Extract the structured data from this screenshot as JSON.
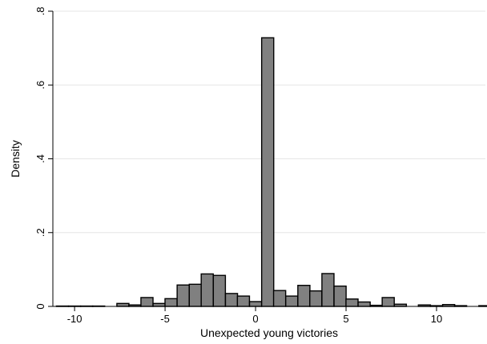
{
  "chart_data": {
    "type": "bar",
    "subtype": "histogram",
    "xlabel": "Unexpected young victories",
    "ylabel": "Density",
    "xlim": [
      -11.2,
      12.7
    ],
    "ylim": [
      0,
      0.8
    ],
    "x_ticks": [
      {
        "value": -10,
        "label": "-10"
      },
      {
        "value": -5,
        "label": "-5"
      },
      {
        "value": 0,
        "label": "0"
      },
      {
        "value": 5,
        "label": "5"
      },
      {
        "value": 10,
        "label": "10"
      }
    ],
    "y_ticks": [
      {
        "value": 0,
        "label": "0"
      },
      {
        "value": 0.2,
        "label": ".2"
      },
      {
        "value": 0.4,
        "label": ".4"
      },
      {
        "value": 0.6,
        "label": ".6"
      },
      {
        "value": 0.8,
        "label": ".8"
      }
    ],
    "grid": true,
    "bin_width": 0.667,
    "bars": [
      {
        "x": -10.67,
        "y": 0.001
      },
      {
        "x": -10.0,
        "y": 0.001
      },
      {
        "x": -9.33,
        "y": 0.001
      },
      {
        "x": -8.67,
        "y": 0.001
      },
      {
        "x": -7.33,
        "y": 0.008
      },
      {
        "x": -6.67,
        "y": 0.004
      },
      {
        "x": -6.0,
        "y": 0.024
      },
      {
        "x": -5.33,
        "y": 0.008
      },
      {
        "x": -4.67,
        "y": 0.021
      },
      {
        "x": -4.0,
        "y": 0.058
      },
      {
        "x": -3.33,
        "y": 0.06
      },
      {
        "x": -2.67,
        "y": 0.088
      },
      {
        "x": -2.0,
        "y": 0.084
      },
      {
        "x": -1.33,
        "y": 0.035
      },
      {
        "x": -0.67,
        "y": 0.028
      },
      {
        "x": 0.0,
        "y": 0.013
      },
      {
        "x": 0.67,
        "y": 0.728
      },
      {
        "x": 1.33,
        "y": 0.043
      },
      {
        "x": 2.0,
        "y": 0.028
      },
      {
        "x": 2.67,
        "y": 0.057
      },
      {
        "x": 3.33,
        "y": 0.042
      },
      {
        "x": 4.0,
        "y": 0.089
      },
      {
        "x": 4.67,
        "y": 0.055
      },
      {
        "x": 5.33,
        "y": 0.02
      },
      {
        "x": 6.0,
        "y": 0.012
      },
      {
        "x": 6.67,
        "y": 0.003
      },
      {
        "x": 7.33,
        "y": 0.024
      },
      {
        "x": 8.0,
        "y": 0.006
      },
      {
        "x": 9.33,
        "y": 0.004
      },
      {
        "x": 10.0,
        "y": 0.002
      },
      {
        "x": 10.67,
        "y": 0.005
      },
      {
        "x": 11.33,
        "y": 0.002
      },
      {
        "x": 12.67,
        "y": 0.002
      }
    ]
  }
}
